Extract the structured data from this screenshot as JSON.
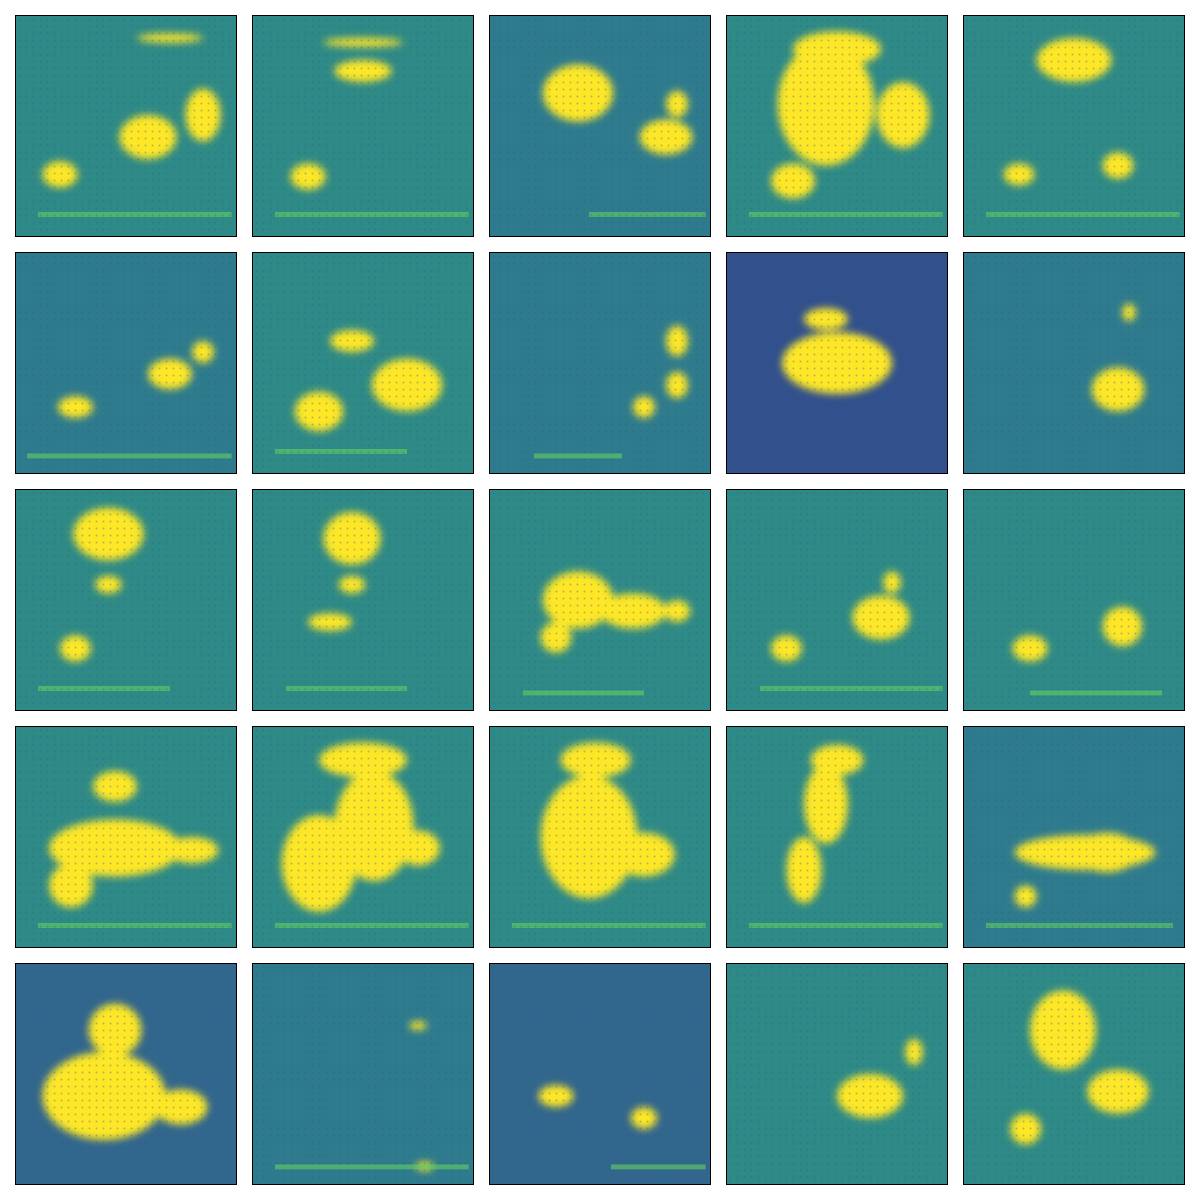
{
  "figure": {
    "rows": 5,
    "cols": 5,
    "colormap": [
      "#440154",
      "#3b528b",
      "#21918c",
      "#5ec962",
      "#fde725"
    ],
    "panels": [
      {
        "bg": "#2e8a86",
        "blobs": [
          [
            0.6,
            0.55,
            0.13,
            0.1
          ],
          [
            0.85,
            0.45,
            0.08,
            0.12
          ],
          [
            0.2,
            0.72,
            0.08,
            0.06
          ],
          [
            0.7,
            0.1,
            0.15,
            0.02
          ]
        ],
        "lines": [
          [
            0.9,
            0.1,
            0.98
          ]
        ],
        "dark": false
      },
      {
        "bg": "#2e8a86",
        "blobs": [
          [
            0.5,
            0.25,
            0.13,
            0.05
          ],
          [
            0.5,
            0.12,
            0.18,
            0.02
          ],
          [
            0.25,
            0.73,
            0.08,
            0.06
          ]
        ],
        "lines": [
          [
            0.9,
            0.1,
            0.98
          ]
        ],
        "dark": false
      },
      {
        "bg": "#2d7b8d",
        "blobs": [
          [
            0.4,
            0.35,
            0.16,
            0.13
          ],
          [
            0.8,
            0.55,
            0.12,
            0.08
          ],
          [
            0.85,
            0.4,
            0.05,
            0.06
          ]
        ],
        "lines": [
          [
            0.9,
            0.45,
            0.98
          ]
        ],
        "dark": false
      },
      {
        "bg": "#2e8a86",
        "blobs": [
          [
            0.45,
            0.4,
            0.22,
            0.28
          ],
          [
            0.8,
            0.45,
            0.12,
            0.15
          ],
          [
            0.3,
            0.75,
            0.1,
            0.08
          ],
          [
            0.5,
            0.15,
            0.2,
            0.08
          ]
        ],
        "lines": [
          [
            0.9,
            0.1,
            0.98
          ]
        ],
        "dark": false
      },
      {
        "bg": "#2e8a86",
        "blobs": [
          [
            0.5,
            0.2,
            0.17,
            0.1
          ],
          [
            0.25,
            0.72,
            0.07,
            0.05
          ],
          [
            0.7,
            0.68,
            0.07,
            0.06
          ]
        ],
        "lines": [
          [
            0.9,
            0.1,
            0.98
          ]
        ],
        "dark": false
      },
      {
        "bg": "#2d7b8d",
        "blobs": [
          [
            0.27,
            0.7,
            0.08,
            0.05
          ],
          [
            0.7,
            0.55,
            0.1,
            0.07
          ],
          [
            0.85,
            0.45,
            0.05,
            0.05
          ]
        ],
        "lines": [
          [
            0.92,
            0.05,
            0.98
          ]
        ],
        "dark": false
      },
      {
        "bg": "#2e8a86",
        "blobs": [
          [
            0.7,
            0.6,
            0.16,
            0.12
          ],
          [
            0.3,
            0.72,
            0.11,
            0.09
          ],
          [
            0.45,
            0.4,
            0.1,
            0.05
          ]
        ],
        "lines": [
          [
            0.9,
            0.1,
            0.7
          ]
        ],
        "dark": false
      },
      {
        "bg": "#2d7b8d",
        "blobs": [
          [
            0.85,
            0.4,
            0.05,
            0.07
          ],
          [
            0.85,
            0.6,
            0.05,
            0.06
          ],
          [
            0.7,
            0.7,
            0.05,
            0.05
          ]
        ],
        "lines": [
          [
            0.92,
            0.2,
            0.6
          ]
        ],
        "dark": false
      },
      {
        "bg": "#31508c",
        "blobs": [
          [
            0.5,
            0.5,
            0.25,
            0.14
          ],
          [
            0.45,
            0.3,
            0.1,
            0.05
          ]
        ],
        "lines": [],
        "dark": true
      },
      {
        "bg": "#2d7b8d",
        "blobs": [
          [
            0.7,
            0.62,
            0.12,
            0.1
          ],
          [
            0.75,
            0.27,
            0.03,
            0.04
          ]
        ],
        "lines": [],
        "dark": false
      },
      {
        "bg": "#2e8a86",
        "blobs": [
          [
            0.42,
            0.2,
            0.16,
            0.12
          ],
          [
            0.42,
            0.43,
            0.06,
            0.04
          ],
          [
            0.27,
            0.72,
            0.07,
            0.06
          ]
        ],
        "lines": [
          [
            0.9,
            0.1,
            0.7
          ]
        ],
        "dark": false
      },
      {
        "bg": "#2e8a86",
        "blobs": [
          [
            0.45,
            0.22,
            0.13,
            0.12
          ],
          [
            0.45,
            0.43,
            0.06,
            0.04
          ],
          [
            0.35,
            0.6,
            0.1,
            0.04
          ]
        ],
        "lines": [
          [
            0.9,
            0.15,
            0.7
          ]
        ],
        "dark": false
      },
      {
        "bg": "#2e8a86",
        "blobs": [
          [
            0.4,
            0.5,
            0.16,
            0.13
          ],
          [
            0.65,
            0.55,
            0.15,
            0.08
          ],
          [
            0.85,
            0.55,
            0.06,
            0.05
          ],
          [
            0.3,
            0.67,
            0.07,
            0.07
          ]
        ],
        "lines": [
          [
            0.92,
            0.15,
            0.7
          ]
        ],
        "dark": false
      },
      {
        "bg": "#2e8a86",
        "blobs": [
          [
            0.7,
            0.58,
            0.13,
            0.1
          ],
          [
            0.27,
            0.72,
            0.07,
            0.06
          ],
          [
            0.75,
            0.42,
            0.04,
            0.05
          ]
        ],
        "lines": [
          [
            0.9,
            0.15,
            0.98
          ]
        ],
        "dark": false
      },
      {
        "bg": "#2e8a86",
        "blobs": [
          [
            0.72,
            0.62,
            0.09,
            0.09
          ],
          [
            0.3,
            0.72,
            0.08,
            0.06
          ]
        ],
        "lines": [
          [
            0.92,
            0.3,
            0.9
          ]
        ],
        "dark": false
      },
      {
        "bg": "#2e8a86",
        "blobs": [
          [
            0.45,
            0.55,
            0.3,
            0.13
          ],
          [
            0.25,
            0.72,
            0.1,
            0.1
          ],
          [
            0.45,
            0.27,
            0.1,
            0.07
          ],
          [
            0.8,
            0.56,
            0.12,
            0.06
          ]
        ],
        "lines": [
          [
            0.9,
            0.1,
            0.98
          ]
        ],
        "dark": false
      },
      {
        "bg": "#2e8a86",
        "blobs": [
          [
            0.3,
            0.62,
            0.17,
            0.22
          ],
          [
            0.55,
            0.45,
            0.18,
            0.25
          ],
          [
            0.5,
            0.15,
            0.2,
            0.08
          ],
          [
            0.75,
            0.55,
            0.1,
            0.08
          ]
        ],
        "lines": [
          [
            0.9,
            0.1,
            0.98
          ]
        ],
        "dark": false
      },
      {
        "bg": "#2e8a86",
        "blobs": [
          [
            0.45,
            0.5,
            0.22,
            0.28
          ],
          [
            0.7,
            0.58,
            0.14,
            0.1
          ],
          [
            0.48,
            0.15,
            0.16,
            0.08
          ]
        ],
        "lines": [
          [
            0.9,
            0.1,
            0.98
          ]
        ],
        "dark": false
      },
      {
        "bg": "#2e8a86",
        "blobs": [
          [
            0.35,
            0.65,
            0.08,
            0.15
          ],
          [
            0.45,
            0.35,
            0.1,
            0.18
          ],
          [
            0.5,
            0.15,
            0.12,
            0.07
          ]
        ],
        "lines": [
          [
            0.9,
            0.1,
            0.98
          ]
        ],
        "dark": false
      },
      {
        "bg": "#2d7b8d",
        "blobs": [
          [
            0.55,
            0.57,
            0.32,
            0.08
          ],
          [
            0.65,
            0.57,
            0.14,
            0.09
          ],
          [
            0.28,
            0.77,
            0.05,
            0.05
          ]
        ],
        "lines": [
          [
            0.9,
            0.1,
            0.95
          ]
        ],
        "dark": false
      },
      {
        "bg": "#31668d",
        "blobs": [
          [
            0.4,
            0.6,
            0.28,
            0.2
          ],
          [
            0.45,
            0.3,
            0.12,
            0.12
          ],
          [
            0.75,
            0.65,
            0.12,
            0.08
          ]
        ],
        "lines": [],
        "dark": false
      },
      {
        "bg": "#2d7b8d",
        "blobs": [
          [
            0.78,
            0.92,
            0.04,
            0.02
          ],
          [
            0.75,
            0.28,
            0.04,
            0.02
          ]
        ],
        "lines": [
          [
            0.92,
            0.1,
            0.98
          ]
        ],
        "dark": false
      },
      {
        "bg": "#31668d",
        "blobs": [
          [
            0.3,
            0.6,
            0.08,
            0.05
          ],
          [
            0.7,
            0.7,
            0.06,
            0.05
          ]
        ],
        "lines": [
          [
            0.92,
            0.55,
            0.98
          ]
        ],
        "dark": false
      },
      {
        "bg": "#2e8a86",
        "blobs": [
          [
            0.65,
            0.6,
            0.15,
            0.1
          ],
          [
            0.85,
            0.4,
            0.04,
            0.06
          ]
        ],
        "lines": [],
        "dark": false
      },
      {
        "bg": "#2e8a86",
        "blobs": [
          [
            0.45,
            0.3,
            0.15,
            0.18
          ],
          [
            0.7,
            0.58,
            0.14,
            0.1
          ],
          [
            0.28,
            0.75,
            0.07,
            0.07
          ]
        ],
        "lines": [],
        "dark": false
      }
    ]
  }
}
